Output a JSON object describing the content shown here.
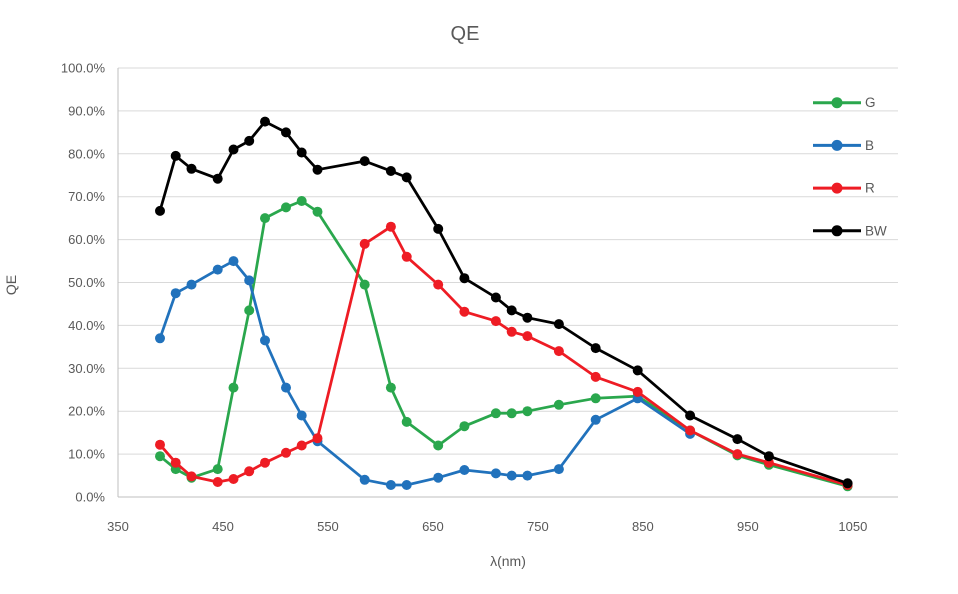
{
  "chart_data": {
    "type": "line",
    "title": "QE",
    "xlabel": "λ(nm)",
    "ylabel": "QE",
    "grid": "horizontal-only",
    "legend_position": "right-inside",
    "xlim": [
      350,
      1093
    ],
    "ylim": [
      0,
      100
    ],
    "x_tick_values": [
      350,
      450,
      550,
      650,
      750,
      850,
      950,
      1050
    ],
    "x_tick_labels": [
      "350",
      "450",
      "550",
      "650",
      "750",
      "850",
      "950",
      "1050"
    ],
    "y_tick_values": [
      0,
      10,
      20,
      30,
      40,
      50,
      60,
      70,
      80,
      90,
      100
    ],
    "y_tick_labels": [
      "0.0%",
      "10.0%",
      "20.0%",
      "30.0%",
      "40.0%",
      "50.0%",
      "60.0%",
      "70.0%",
      "80.0%",
      "90.0%",
      "100.0%"
    ],
    "x": [
      390,
      405,
      420,
      445,
      460,
      475,
      490,
      510,
      525,
      540,
      585,
      610,
      625,
      655,
      680,
      710,
      725,
      740,
      770,
      805,
      845,
      895,
      940,
      970,
      1045
    ],
    "series": [
      {
        "name": "G",
        "color": "#2AA74D",
        "values": [
          9.5,
          6.5,
          4.5,
          6.5,
          25.5,
          43.5,
          65,
          67.5,
          69,
          66.5,
          49.5,
          25.5,
          17.5,
          12,
          16.5,
          19.5,
          19.5,
          20,
          21.5,
          23,
          23.5,
          15.5,
          9.7,
          7.5,
          2.5
        ]
      },
      {
        "name": "B",
        "color": "#2172BC",
        "values": [
          37,
          47.5,
          49.5,
          53,
          55,
          50.5,
          36.5,
          25.5,
          19,
          13,
          4,
          2.8,
          2.8,
          4.5,
          6.3,
          5.5,
          5,
          5,
          6.5,
          18,
          23,
          14.7,
          null,
          null,
          null
        ]
      },
      {
        "name": "R",
        "color": "#EE1C24",
        "values": [
          12.2,
          8,
          4.8,
          3.5,
          4.2,
          6,
          8,
          10.3,
          12,
          13.7,
          59,
          63,
          56,
          49.5,
          43.2,
          41,
          38.5,
          37.5,
          34,
          28,
          24.5,
          15.5,
          10,
          8,
          2.8
        ]
      },
      {
        "name": "BW",
        "color": "#000000",
        "values": [
          66.7,
          79.5,
          76.5,
          74.2,
          81,
          83,
          87.5,
          85,
          80.3,
          76.3,
          78.3,
          76,
          74.5,
          62.5,
          51,
          46.5,
          43.5,
          41.8,
          40.3,
          34.7,
          29.5,
          19,
          13.5,
          9.5,
          3.2
        ]
      }
    ]
  }
}
